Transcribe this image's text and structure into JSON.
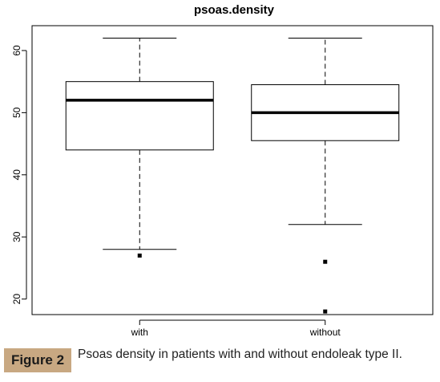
{
  "chart_data": {
    "type": "boxplot",
    "title": "psoas.density",
    "xlabel": "",
    "ylabel": "",
    "categories": [
      "with",
      "without"
    ],
    "ylim": [
      17.5,
      64
    ],
    "yticks": [
      20,
      30,
      40,
      50,
      60
    ],
    "grid": false,
    "legend": "none",
    "boxes": [
      {
        "name": "with",
        "whisker_low": 28,
        "q1": 44,
        "median": 52,
        "q3": 55,
        "whisker_high": 62,
        "outliers": [
          27
        ]
      },
      {
        "name": "without",
        "whisker_low": 32,
        "q1": 45.5,
        "median": 50,
        "q3": 54.5,
        "whisker_high": 62,
        "outliers": [
          26,
          18
        ]
      }
    ]
  },
  "caption": {
    "label": "Figure 2",
    "text": "Psoas density in patients with and without endoleak type II."
  },
  "colors": {
    "badge": "#c8a882",
    "ink": "#000000"
  }
}
